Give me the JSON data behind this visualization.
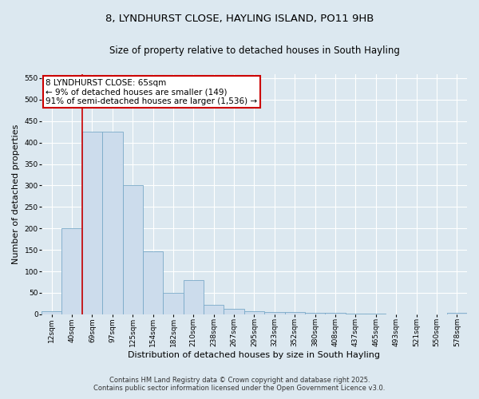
{
  "title_line1": "8, LYNDHURST CLOSE, HAYLING ISLAND, PO11 9HB",
  "title_line2": "Size of property relative to detached houses in South Hayling",
  "xlabel": "Distribution of detached houses by size in South Hayling",
  "ylabel": "Number of detached properties",
  "categories": [
    "12sqm",
    "40sqm",
    "69sqm",
    "97sqm",
    "125sqm",
    "154sqm",
    "182sqm",
    "210sqm",
    "238sqm",
    "267sqm",
    "295sqm",
    "323sqm",
    "352sqm",
    "380sqm",
    "408sqm",
    "437sqm",
    "465sqm",
    "493sqm",
    "521sqm",
    "550sqm",
    "578sqm"
  ],
  "values": [
    8,
    200,
    425,
    425,
    300,
    147,
    50,
    80,
    22,
    12,
    8,
    6,
    6,
    3,
    3,
    2,
    1,
    0,
    0,
    0,
    3
  ],
  "bar_color": "#ccdcec",
  "bar_edge_color": "#7aaac8",
  "annotation_text_line1": "8 LYNDHURST CLOSE: 65sqm",
  "annotation_text_line2": "← 9% of detached houses are smaller (149)",
  "annotation_text_line3": "91% of semi-detached houses are larger (1,536) →",
  "annotation_box_color": "#ffffff",
  "annotation_box_edge_color": "#cc0000",
  "red_line_x": 1.5,
  "red_line_color": "#cc0000",
  "ylim": [
    0,
    560
  ],
  "yticks": [
    0,
    50,
    100,
    150,
    200,
    250,
    300,
    350,
    400,
    450,
    500,
    550
  ],
  "footnote1": "Contains HM Land Registry data © Crown copyright and database right 2025.",
  "footnote2": "Contains public sector information licensed under the Open Government Licence v3.0.",
  "background_color": "#dce8f0",
  "plot_bg_color": "#dce8f0",
  "grid_color": "#ffffff",
  "title_fontsize": 9.5,
  "subtitle_fontsize": 8.5,
  "axis_label_fontsize": 8,
  "tick_fontsize": 6.5,
  "footnote_fontsize": 6.0,
  "ann_fontsize": 7.5
}
